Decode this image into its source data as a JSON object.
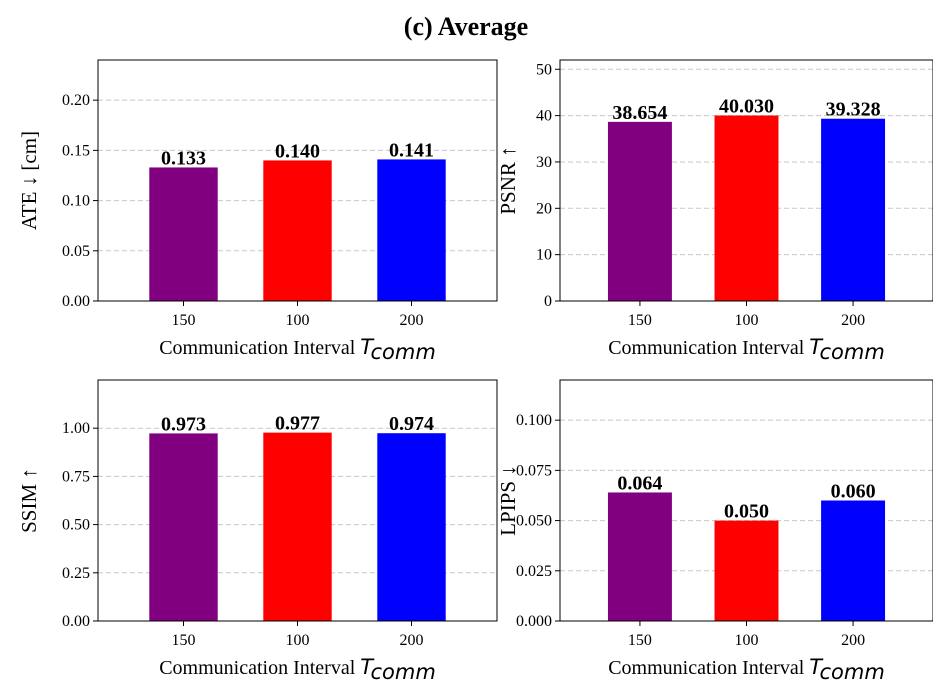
{
  "title": "(c) Average",
  "chart_data": [
    {
      "type": "bar",
      "categories": [
        "150",
        "100",
        "200"
      ],
      "values": [
        0.133,
        0.14,
        0.141
      ],
      "value_labels": [
        "0.133",
        "0.140",
        "0.141"
      ],
      "xlabel": "Communication Interval",
      "xlabel_symbol": "T",
      "xlabel_subscript": "comm",
      "ylabel": "ATE ↓  [cm]",
      "ylim": [
        0,
        0.24
      ],
      "yticks": [
        0,
        0.05,
        0.1,
        0.15,
        0.2
      ],
      "ytick_labels": [
        "0.00",
        "0.05",
        "0.10",
        "0.15",
        "0.20"
      ],
      "colors": [
        "#800080",
        "#ff0000",
        "#0000ff"
      ],
      "grid": "y-dashed"
    },
    {
      "type": "bar",
      "categories": [
        "150",
        "100",
        "200"
      ],
      "values": [
        38.654,
        40.03,
        39.328
      ],
      "value_labels": [
        "38.654",
        "40.030",
        "39.328"
      ],
      "xlabel": "Communication Interval",
      "xlabel_symbol": "T",
      "xlabel_subscript": "comm",
      "ylabel": "PSNR ↑",
      "ylim": [
        0,
        52
      ],
      "yticks": [
        0,
        10,
        20,
        30,
        40,
        50
      ],
      "ytick_labels": [
        "0",
        "10",
        "20",
        "30",
        "40",
        "50"
      ],
      "colors": [
        "#800080",
        "#ff0000",
        "#0000ff"
      ],
      "grid": "y-dashed"
    },
    {
      "type": "bar",
      "categories": [
        "150",
        "100",
        "200"
      ],
      "values": [
        0.973,
        0.977,
        0.974
      ],
      "value_labels": [
        "0.973",
        "0.977",
        "0.974"
      ],
      "xlabel": "Communication Interval",
      "xlabel_symbol": "T",
      "xlabel_subscript": "comm",
      "ylabel": "SSIM ↑",
      "ylim": [
        0,
        1.25
      ],
      "yticks": [
        0,
        0.25,
        0.5,
        0.75,
        1.0
      ],
      "ytick_labels": [
        "0.00",
        "0.25",
        "0.50",
        "0.75",
        "1.00"
      ],
      "colors": [
        "#800080",
        "#ff0000",
        "#0000ff"
      ],
      "grid": "y-dashed"
    },
    {
      "type": "bar",
      "categories": [
        "150",
        "100",
        "200"
      ],
      "values": [
        0.064,
        0.05,
        0.06
      ],
      "value_labels": [
        "0.064",
        "0.050",
        "0.060"
      ],
      "xlabel": "Communication Interval",
      "xlabel_symbol": "T",
      "xlabel_subscript": "comm",
      "ylabel": "LPIPS ↓",
      "ylim": [
        0,
        0.12
      ],
      "yticks": [
        0,
        0.025,
        0.05,
        0.075,
        0.1
      ],
      "ytick_labels": [
        "0.000",
        "0.025",
        "0.050",
        "0.075",
        "0.100"
      ],
      "colors": [
        "#800080",
        "#ff0000",
        "#0000ff"
      ],
      "grid": "y-dashed"
    }
  ]
}
